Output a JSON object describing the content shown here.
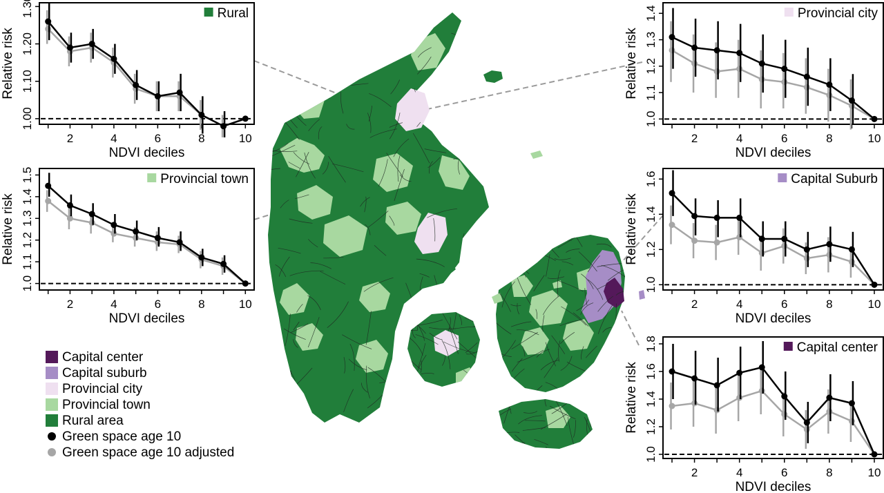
{
  "colors": {
    "capital_center": "#54195a",
    "capital_suburb": "#a68dc6",
    "provincial_city": "#efe0f0",
    "provincial_town": "#a8d8a0",
    "rural": "#217e3a",
    "unadjusted": "#000000",
    "adjusted": "#a6a6a6",
    "connector": "#9a9a9a",
    "road": "#1e2a22"
  },
  "map": {
    "description": "map-of-denmark-by-urbanization",
    "regions": [
      "rural",
      "provincial_town",
      "provincial_city",
      "capital_suburb",
      "capital_center"
    ]
  },
  "legend": {
    "items": [
      {
        "key": "capital_center",
        "label": "Capital center",
        "marker": "square"
      },
      {
        "key": "capital_suburb",
        "label": "Capital suburb",
        "marker": "square"
      },
      {
        "key": "provincial_city",
        "label": "Provincial city",
        "marker": "square"
      },
      {
        "key": "provincial_town",
        "label": "Provincial town",
        "marker": "square"
      },
      {
        "key": "rural",
        "label": "Rural area",
        "marker": "square"
      },
      {
        "key": "unadjusted",
        "label": "Green space age 10",
        "marker": "circle"
      },
      {
        "key": "adjusted",
        "label": "Green space age 10 adjusted",
        "marker": "circle"
      }
    ]
  },
  "chart_data": [
    {
      "id": "rural",
      "type": "line",
      "panel_label": "Rural",
      "swatch": "rural",
      "xlabel": "NDVI deciles",
      "ylabel": "Relative risk",
      "x": [
        1,
        2,
        3,
        4,
        5,
        6,
        7,
        8,
        9,
        10
      ],
      "xticks": [
        2,
        4,
        6,
        8,
        10
      ],
      "xlim": [
        0.6,
        10.4
      ],
      "ylim": [
        0.985,
        1.31
      ],
      "yticks": [
        1.0,
        1.1,
        1.2,
        1.3
      ],
      "ytick_labels": [
        "1.00",
        "1.10",
        "1.20",
        "1.30"
      ],
      "reference_line": 1.0,
      "series": [
        {
          "name": "Green space age 10",
          "color": "unadjusted",
          "values": [
            1.26,
            1.19,
            1.2,
            1.16,
            1.09,
            1.06,
            1.07,
            1.01,
            0.98,
            1.0
          ],
          "lower": [
            1.21,
            1.15,
            1.16,
            1.12,
            1.05,
            1.02,
            1.02,
            0.96,
            0.95,
            1.0
          ],
          "upper": [
            1.31,
            1.23,
            1.24,
            1.2,
            1.13,
            1.1,
            1.12,
            1.06,
            1.02,
            1.0
          ]
        },
        {
          "name": "Green space age 10 adjusted",
          "color": "adjusted",
          "values": [
            1.24,
            1.18,
            1.19,
            1.15,
            1.08,
            1.06,
            1.06,
            1.01,
            0.98,
            1.0
          ],
          "lower": [
            1.2,
            1.14,
            1.15,
            1.11,
            1.04,
            1.02,
            1.02,
            0.97,
            0.95,
            1.0
          ],
          "upper": [
            1.29,
            1.22,
            1.23,
            1.19,
            1.12,
            1.1,
            1.1,
            1.05,
            1.01,
            1.0
          ]
        }
      ]
    },
    {
      "id": "provincial-town",
      "type": "line",
      "panel_label": "Provincial town",
      "swatch": "provincial_town",
      "xlabel": "NDVI deciles",
      "ylabel": "Relative risk",
      "x": [
        1,
        2,
        3,
        4,
        5,
        6,
        7,
        8,
        9,
        10
      ],
      "xticks": [
        2,
        4,
        6,
        8,
        10
      ],
      "xlim": [
        0.6,
        10.4
      ],
      "ylim": [
        0.97,
        1.53
      ],
      "yticks": [
        1.0,
        1.1,
        1.2,
        1.3,
        1.4,
        1.5
      ],
      "ytick_labels": [
        "1.0",
        "1.1",
        "1.2",
        "1.3",
        "1.4",
        "1.5"
      ],
      "reference_line": 1.0,
      "series": [
        {
          "name": "Green space age 10",
          "color": "unadjusted",
          "values": [
            1.45,
            1.36,
            1.32,
            1.27,
            1.24,
            1.21,
            1.19,
            1.12,
            1.09,
            1.0
          ],
          "lower": [
            1.4,
            1.31,
            1.27,
            1.23,
            1.2,
            1.17,
            1.15,
            1.08,
            1.05,
            1.0
          ],
          "upper": [
            1.51,
            1.41,
            1.37,
            1.32,
            1.29,
            1.26,
            1.24,
            1.16,
            1.13,
            1.0
          ]
        },
        {
          "name": "Green space age 10 adjusted",
          "color": "adjusted",
          "values": [
            1.38,
            1.3,
            1.28,
            1.23,
            1.21,
            1.19,
            1.18,
            1.11,
            1.08,
            1.0
          ],
          "lower": [
            1.33,
            1.25,
            1.23,
            1.19,
            1.17,
            1.15,
            1.14,
            1.07,
            1.04,
            1.0
          ],
          "upper": [
            1.43,
            1.35,
            1.33,
            1.28,
            1.26,
            1.24,
            1.22,
            1.15,
            1.12,
            1.0
          ]
        }
      ]
    },
    {
      "id": "provincial-city",
      "type": "line",
      "panel_label": "Provincial city",
      "swatch": "provincial_city",
      "xlabel": "NDVI deciles",
      "ylabel": "Relative risk",
      "x": [
        1,
        2,
        3,
        4,
        5,
        6,
        7,
        8,
        9,
        10
      ],
      "xticks": [
        2,
        4,
        6,
        8,
        10
      ],
      "xlim": [
        0.6,
        10.4
      ],
      "ylim": [
        0.98,
        1.44
      ],
      "yticks": [
        1.0,
        1.1,
        1.2,
        1.3,
        1.4
      ],
      "ytick_labels": [
        "1.0",
        "1.1",
        "1.2",
        "1.3",
        "1.4"
      ],
      "reference_line": 1.0,
      "series": [
        {
          "name": "Green space age 10",
          "color": "unadjusted",
          "values": [
            1.31,
            1.27,
            1.26,
            1.25,
            1.21,
            1.19,
            1.16,
            1.13,
            1.07,
            1.0
          ],
          "lower": [
            1.19,
            1.16,
            1.15,
            1.14,
            1.1,
            1.08,
            1.05,
            1.03,
            0.98,
            1.0
          ],
          "upper": [
            1.42,
            1.38,
            1.37,
            1.36,
            1.32,
            1.3,
            1.27,
            1.23,
            1.17,
            1.0
          ]
        },
        {
          "name": "Green space age 10 adjusted",
          "color": "adjusted",
          "values": [
            1.26,
            1.21,
            1.18,
            1.19,
            1.15,
            1.14,
            1.12,
            1.09,
            1.05,
            1.0
          ],
          "lower": [
            1.14,
            1.1,
            1.08,
            1.08,
            1.04,
            1.04,
            1.02,
            0.99,
            0.96,
            1.0
          ],
          "upper": [
            1.37,
            1.32,
            1.29,
            1.3,
            1.26,
            1.25,
            1.23,
            1.19,
            1.15,
            1.0
          ]
        }
      ]
    },
    {
      "id": "capital-suburb",
      "type": "line",
      "panel_label": "Capital Suburb",
      "swatch": "capital_suburb",
      "xlabel": "NDVI deciles",
      "ylabel": "Relative risk",
      "x": [
        1,
        2,
        3,
        4,
        5,
        6,
        7,
        8,
        9,
        10
      ],
      "xticks": [
        2,
        4,
        6,
        8,
        10
      ],
      "xlim": [
        0.6,
        10.4
      ],
      "ylim": [
        0.97,
        1.66
      ],
      "yticks": [
        1.0,
        1.2,
        1.4,
        1.6
      ],
      "ytick_labels": [
        "1.0",
        "1.2",
        "1.4",
        "1.6"
      ],
      "reference_line": 1.0,
      "series": [
        {
          "name": "Green space age 10",
          "color": "unadjusted",
          "values": [
            1.52,
            1.39,
            1.38,
            1.38,
            1.26,
            1.26,
            1.2,
            1.23,
            1.2,
            1.0
          ],
          "lower": [
            1.39,
            1.28,
            1.27,
            1.27,
            1.16,
            1.16,
            1.1,
            1.13,
            1.1,
            1.0
          ],
          "upper": [
            1.65,
            1.49,
            1.48,
            1.49,
            1.36,
            1.36,
            1.3,
            1.33,
            1.3,
            1.0
          ]
        },
        {
          "name": "Green space age 10 adjusted",
          "color": "adjusted",
          "values": [
            1.34,
            1.25,
            1.24,
            1.27,
            1.18,
            1.22,
            1.15,
            1.17,
            1.13,
            1.0
          ],
          "lower": [
            1.23,
            1.15,
            1.14,
            1.17,
            1.08,
            1.12,
            1.06,
            1.07,
            1.04,
            1.0
          ],
          "upper": [
            1.45,
            1.35,
            1.34,
            1.37,
            1.28,
            1.32,
            1.24,
            1.27,
            1.22,
            1.0
          ]
        }
      ]
    },
    {
      "id": "capital-center",
      "type": "line",
      "panel_label": "Capital center",
      "swatch": "capital_center",
      "xlabel": "NDVI deciles",
      "ylabel": "Relative risk",
      "x": [
        1,
        2,
        3,
        4,
        5,
        6,
        7,
        8,
        9,
        10
      ],
      "xticks": [
        2,
        4,
        6,
        8,
        10
      ],
      "xlim": [
        0.6,
        10.4
      ],
      "ylim": [
        0.97,
        1.85
      ],
      "yticks": [
        1.0,
        1.2,
        1.4,
        1.6,
        1.8
      ],
      "ytick_labels": [
        "1.0",
        "1.2",
        "1.4",
        "1.6",
        "1.8"
      ],
      "reference_line": 1.0,
      "series": [
        {
          "name": "Green space age 10",
          "color": "unadjusted",
          "values": [
            1.6,
            1.55,
            1.5,
            1.59,
            1.63,
            1.42,
            1.23,
            1.41,
            1.37,
            1.0
          ],
          "lower": [
            1.4,
            1.36,
            1.31,
            1.4,
            1.44,
            1.25,
            1.08,
            1.24,
            1.21,
            1.0
          ],
          "upper": [
            1.8,
            1.75,
            1.7,
            1.78,
            1.82,
            1.6,
            1.38,
            1.58,
            1.53,
            1.0
          ]
        },
        {
          "name": "Green space age 10 adjusted",
          "color": "adjusted",
          "values": [
            1.35,
            1.37,
            1.32,
            1.41,
            1.46,
            1.29,
            1.18,
            1.31,
            1.24,
            1.0
          ],
          "lower": [
            1.18,
            1.2,
            1.15,
            1.24,
            1.29,
            1.13,
            1.04,
            1.15,
            1.09,
            1.0
          ],
          "upper": [
            1.52,
            1.54,
            1.49,
            1.58,
            1.63,
            1.45,
            1.32,
            1.47,
            1.39,
            1.0
          ]
        }
      ]
    }
  ]
}
